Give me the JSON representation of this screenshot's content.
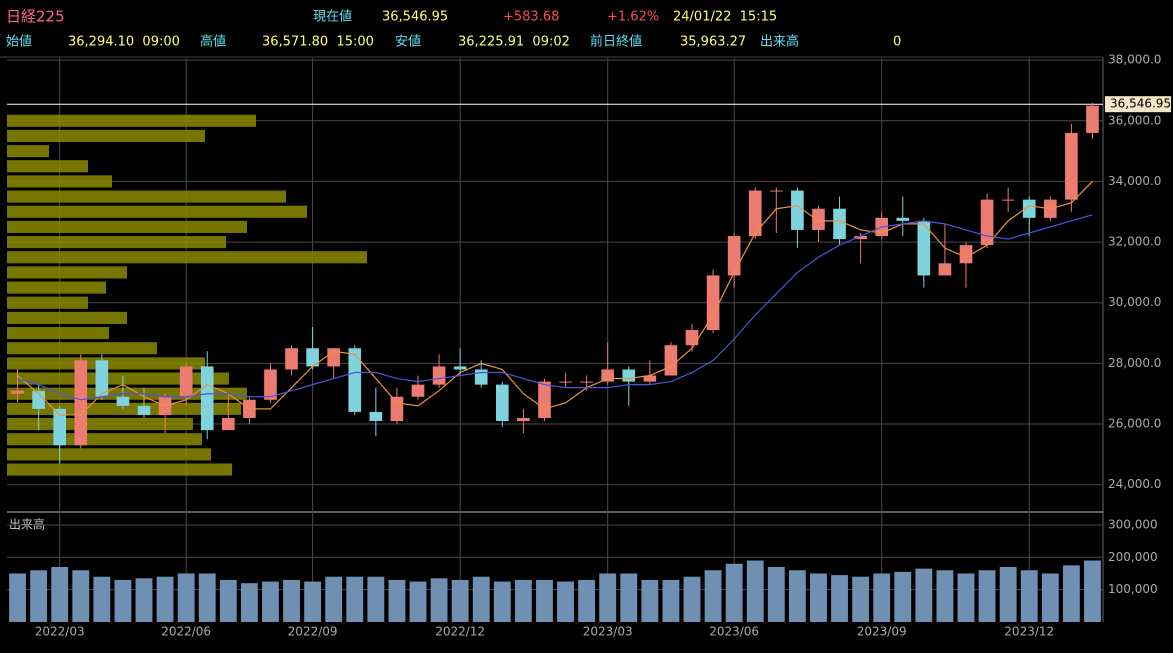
{
  "header": {
    "symbol": "日経225",
    "price_label": "現在値",
    "price": "36,546.95",
    "change": "+583.68",
    "change_pct": "+1.62%",
    "datetime": "24/01/22  15:15",
    "open_label": "始値",
    "open": "36,294.10  09:00",
    "high_label": "高値",
    "high": "36,571.80  15:00",
    "low_label": "安値",
    "low": "36,225.91  09:02",
    "prev_label": "前日終値",
    "prev": "35,963.27",
    "volume_label": "出来高",
    "volume": "0"
  },
  "chart_data": [
    {
      "type": "candlestick",
      "up_color": "#ec7b72",
      "down_color": "#7fd3dc",
      "open": [
        27000,
        27100,
        26500,
        25300,
        28100,
        26900,
        26600,
        26300,
        26900,
        27900,
        25800,
        26200,
        26800,
        27800,
        28500,
        27900,
        28500,
        26400,
        26100,
        26900,
        27300,
        27900,
        27800,
        27300,
        26100,
        26200,
        27400,
        27400,
        27400,
        27800,
        27400,
        27600,
        28600,
        29100,
        30900,
        32200,
        33700,
        33700,
        32400,
        33100,
        32100,
        32200,
        32800,
        32700,
        30900,
        31300,
        31900,
        33400,
        33400,
        32800,
        33400,
        35600
      ],
      "high": [
        27800,
        27300,
        26600,
        28300,
        28300,
        27600,
        27200,
        27000,
        28000,
        28400,
        27000,
        26900,
        28000,
        28600,
        29200,
        28500,
        28600,
        27200,
        27200,
        27600,
        28300,
        28500,
        28100,
        27400,
        26500,
        27500,
        27700,
        27600,
        28700,
        27900,
        28100,
        28700,
        29300,
        31100,
        32300,
        33800,
        33800,
        33800,
        33200,
        33500,
        32300,
        33000,
        33500,
        32800,
        32600,
        32000,
        33600,
        33800,
        33500,
        33500,
        35900,
        36600
      ],
      "low": [
        26700,
        25800,
        24700,
        25200,
        26800,
        26500,
        26200,
        25700,
        26600,
        25500,
        25800,
        26000,
        26700,
        27600,
        27800,
        27500,
        26300,
        25600,
        26000,
        26800,
        27200,
        27600,
        27200,
        25900,
        25700,
        26100,
        27200,
        27100,
        27300,
        26600,
        27300,
        27600,
        28400,
        29000,
        30500,
        32100,
        32300,
        31800,
        32000,
        31900,
        31300,
        32100,
        32200,
        30500,
        30900,
        30500,
        31800,
        33000,
        32200,
        32700,
        33000,
        35400
      ],
      "close": [
        27100,
        26500,
        25300,
        28100,
        26900,
        26600,
        26300,
        26900,
        27900,
        25800,
        26200,
        26800,
        27800,
        28500,
        27900,
        28500,
        26400,
        26100,
        26900,
        27300,
        27900,
        27800,
        27300,
        26100,
        26200,
        27400,
        27400,
        27400,
        27800,
        27400,
        27600,
        28600,
        29100,
        30900,
        32200,
        33700,
        33700,
        32400,
        33100,
        32100,
        32200,
        32800,
        32700,
        30900,
        31300,
        31900,
        33400,
        33400,
        32800,
        33400,
        35600,
        36500
      ],
      "series": [
        {
          "color": "#f0923a",
          "values": [
            27600,
            27000,
            26300,
            26300,
            27000,
            27300,
            26900,
            26600,
            26800,
            27300,
            27000,
            26500,
            26500,
            27200,
            27900,
            28400,
            28300,
            27500,
            26700,
            26600,
            27100,
            27700,
            28000,
            27800,
            27000,
            26500,
            26700,
            27200,
            27500,
            27500,
            27600,
            27900,
            28500,
            29600,
            31000,
            32300,
            33100,
            33200,
            32700,
            32700,
            32400,
            32300,
            32600,
            32600,
            31800,
            31500,
            31900,
            32700,
            33200,
            33100,
            33300,
            34000
          ]
        },
        {
          "color": "#4a55e0",
          "values": [
            27500,
            27300,
            27000,
            26800,
            26900,
            27000,
            27000,
            26900,
            26900,
            27000,
            27000,
            26900,
            26900,
            27100,
            27300,
            27500,
            27700,
            27700,
            27500,
            27400,
            27500,
            27600,
            27700,
            27700,
            27500,
            27300,
            27200,
            27200,
            27200,
            27300,
            27300,
            27400,
            27700,
            28100,
            28800,
            29600,
            30300,
            31000,
            31500,
            31900,
            32200,
            32500,
            32600,
            32700,
            32600,
            32400,
            32200,
            32100,
            32300,
            32500,
            32700,
            32900
          ]
        }
      ],
      "ylim": [
        23100,
        38070
      ],
      "yticks": [
        {
          "value": 24000,
          "label": "24,000.0"
        },
        {
          "value": 26000,
          "label": "26,000.0"
        },
        {
          "value": 28000,
          "label": "28,000.0"
        },
        {
          "value": 30000,
          "label": "30,000.0"
        },
        {
          "value": 32000,
          "label": "32,000.0"
        },
        {
          "value": 34000,
          "label": "34,000.0"
        },
        {
          "value": 36000,
          "label": "36,000.0"
        },
        {
          "value": 38000,
          "label": "38,000.0"
        }
      ],
      "last_price": {
        "value": 36546.95,
        "label": "36,546.95"
      },
      "volume_profile": {
        "color": "#8a8a00",
        "levels": [
          24500,
          25000,
          25500,
          26000,
          26500,
          27000,
          27500,
          28000,
          28500,
          29000,
          29500,
          30000,
          30500,
          31000,
          31500,
          32000,
          32500,
          33000,
          33500,
          34000,
          34500,
          35000,
          35500,
          36000
        ],
        "values": [
          75,
          68,
          65,
          62,
          78,
          80,
          74,
          66,
          50,
          34,
          40,
          27,
          33,
          40,
          120,
          73,
          80,
          100,
          93,
          35,
          27,
          14,
          66,
          83
        ]
      }
    },
    {
      "type": "bar",
      "title": "出来高",
      "color": "#6f8fb3",
      "categories": [
        null,
        null,
        "2022/03",
        null,
        null,
        null,
        null,
        null,
        "2022/06",
        null,
        null,
        null,
        null,
        null,
        "2022/09",
        null,
        null,
        null,
        null,
        null,
        null,
        "2022/12",
        null,
        null,
        null,
        null,
        null,
        null,
        "2023/03",
        null,
        null,
        null,
        null,
        null,
        "2023/06",
        null,
        null,
        null,
        null,
        null,
        null,
        "2023/09",
        null,
        null,
        null,
        null,
        null,
        null,
        "2023/12",
        null,
        null,
        null
      ],
      "values": [
        150000,
        160000,
        170000,
        160000,
        140000,
        130000,
        135000,
        140000,
        150000,
        150000,
        130000,
        120000,
        125000,
        130000,
        125000,
        140000,
        140000,
        140000,
        130000,
        125000,
        135000,
        130000,
        140000,
        125000,
        130000,
        130000,
        125000,
        130000,
        150000,
        150000,
        130000,
        130000,
        140000,
        160000,
        180000,
        190000,
        170000,
        160000,
        150000,
        145000,
        140000,
        150000,
        155000,
        165000,
        160000,
        150000,
        160000,
        170000,
        160000,
        150000,
        175000,
        190000
      ],
      "ylim": [
        0,
        340000
      ],
      "yticks": [
        {
          "value": 100000,
          "label": "100,000"
        },
        {
          "value": 200000,
          "label": "200,000"
        },
        {
          "value": 300000,
          "label": "300,000"
        }
      ]
    }
  ]
}
